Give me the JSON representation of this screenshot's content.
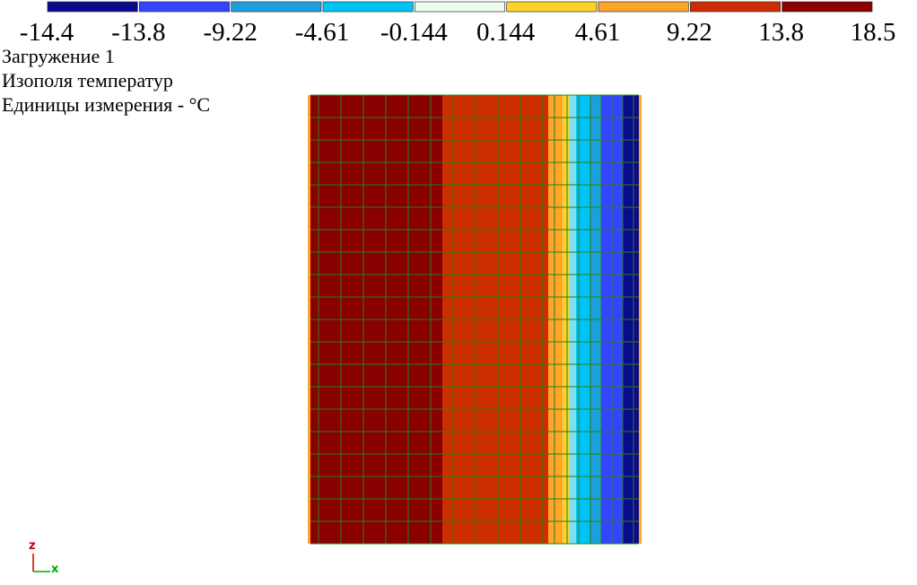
{
  "legend": {
    "colors": [
      "#0a0a8c",
      "#3346ff",
      "#1d9fdc",
      "#00c4f8",
      "#eefcee",
      "#fdd32a",
      "#fea52a",
      "#cc2e00",
      "#880000"
    ],
    "labels": [
      "-14.4",
      "-13.8",
      "-9.22",
      "-4.61",
      "-0.144",
      "0.144",
      "4.61",
      "9.22",
      "13.8",
      "18.5"
    ]
  },
  "info": {
    "load_case": "Загружение 1",
    "result": "Изополя температур",
    "units": "Единицы измерения - °C"
  },
  "axes": {
    "z": "z",
    "x": "x"
  }
}
